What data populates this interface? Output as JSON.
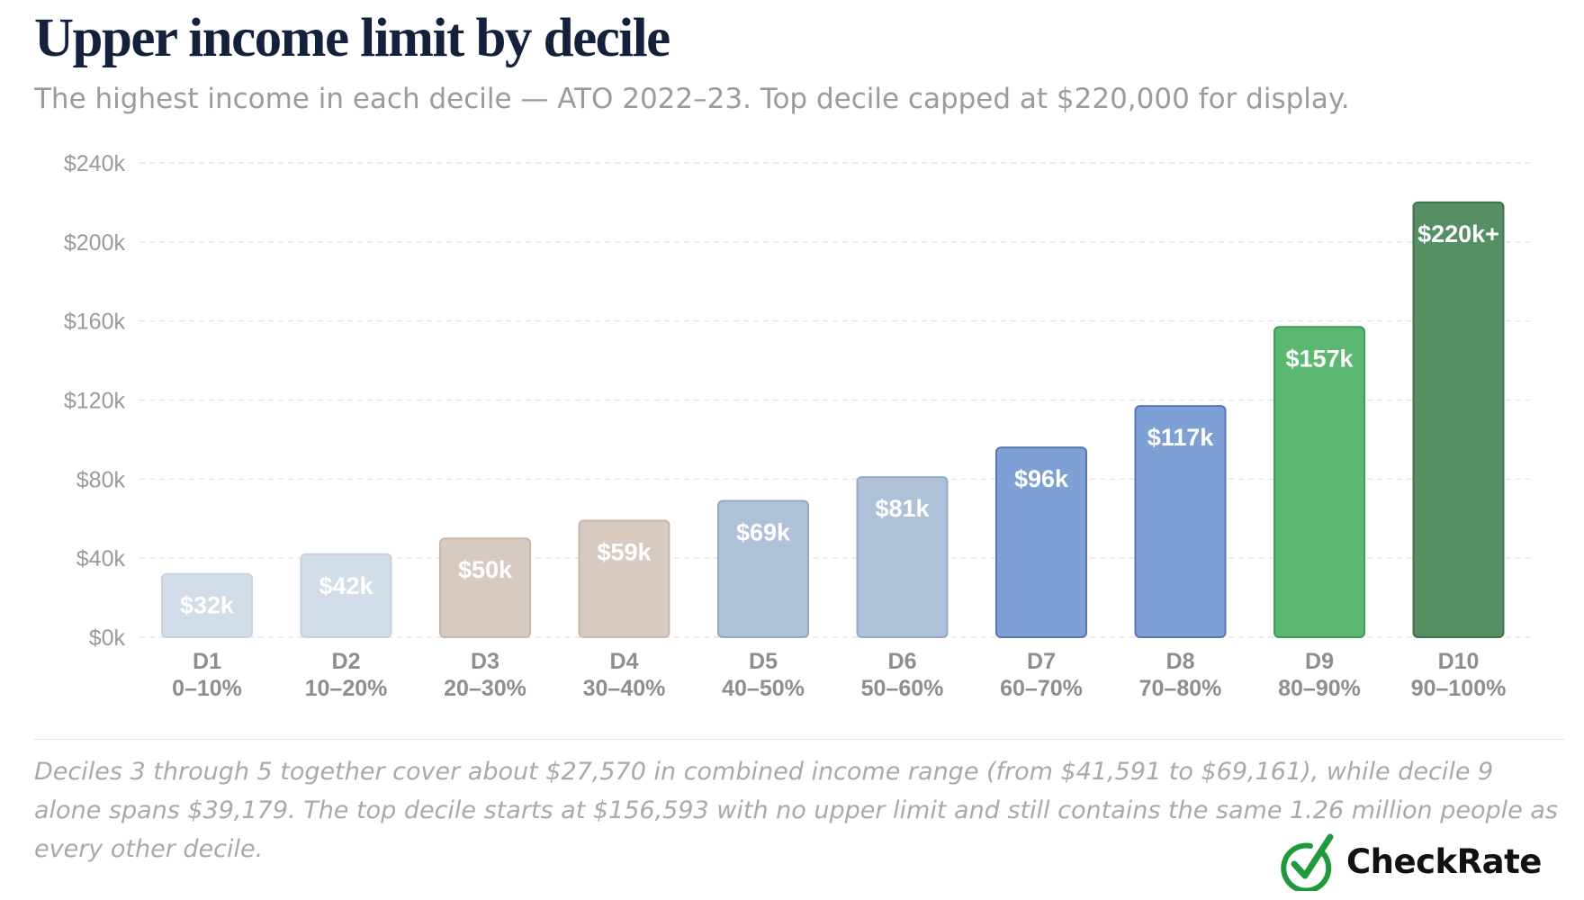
{
  "title": "Upper income limit by decile",
  "subtitle": "The highest income in each decile — ATO 2022–23. Top decile capped at $220,000 for display.",
  "footnote": "Deciles 3 through 5 together cover about $27,570 in combined income range (from $41,591 to $69,161), while decile 9 alone spans $39,179. The top decile starts at $156,593 with no upper limit and still contains the same 1.26 million people as every other decile.",
  "brand": {
    "name": "CheckRate",
    "accent": "#1e9a3c",
    "icon": "checkmark-circle-icon"
  },
  "chart_data": {
    "type": "bar",
    "title": "Upper income limit by decile",
    "ylim": [
      0,
      240000
    ],
    "yticks": [
      0,
      40000,
      80000,
      120000,
      160000,
      200000,
      240000
    ],
    "ytick_labels": [
      "$0k",
      "$40k",
      "$80k",
      "$120k",
      "$160k",
      "$200k",
      "$240k"
    ],
    "grid": true,
    "categories": [
      "D1",
      "D2",
      "D3",
      "D4",
      "D5",
      "D6",
      "D7",
      "D8",
      "D9",
      "D10"
    ],
    "category_ranges": [
      "0–10%",
      "10–20%",
      "20–30%",
      "30–40%",
      "40–50%",
      "50–60%",
      "60–70%",
      "70–80%",
      "80–90%",
      "90–100%"
    ],
    "values": [
      32000,
      42000,
      50000,
      59000,
      69000,
      81000,
      96000,
      117000,
      157000,
      220000
    ],
    "value_labels": [
      "$32k",
      "$42k",
      "$50k",
      "$59k",
      "$69k",
      "$81k",
      "$96k",
      "$117k",
      "$157k",
      "$220k+"
    ],
    "colors": [
      "#d1dde8",
      "#d1dde8",
      "#d8cac0",
      "#d8cac0",
      "#afc0d9",
      "#afc0d9",
      "#7ea0d4",
      "#7ea0d4",
      "#5cb870",
      "#578f64"
    ],
    "border_colors": [
      "#c5d3e0",
      "#c5d3e0",
      "#c9b7aa",
      "#c9b7aa",
      "#93a9c9",
      "#93a9c9",
      "#5677b1",
      "#5677b1",
      "#3f9e55",
      "#3f7249"
    ]
  }
}
